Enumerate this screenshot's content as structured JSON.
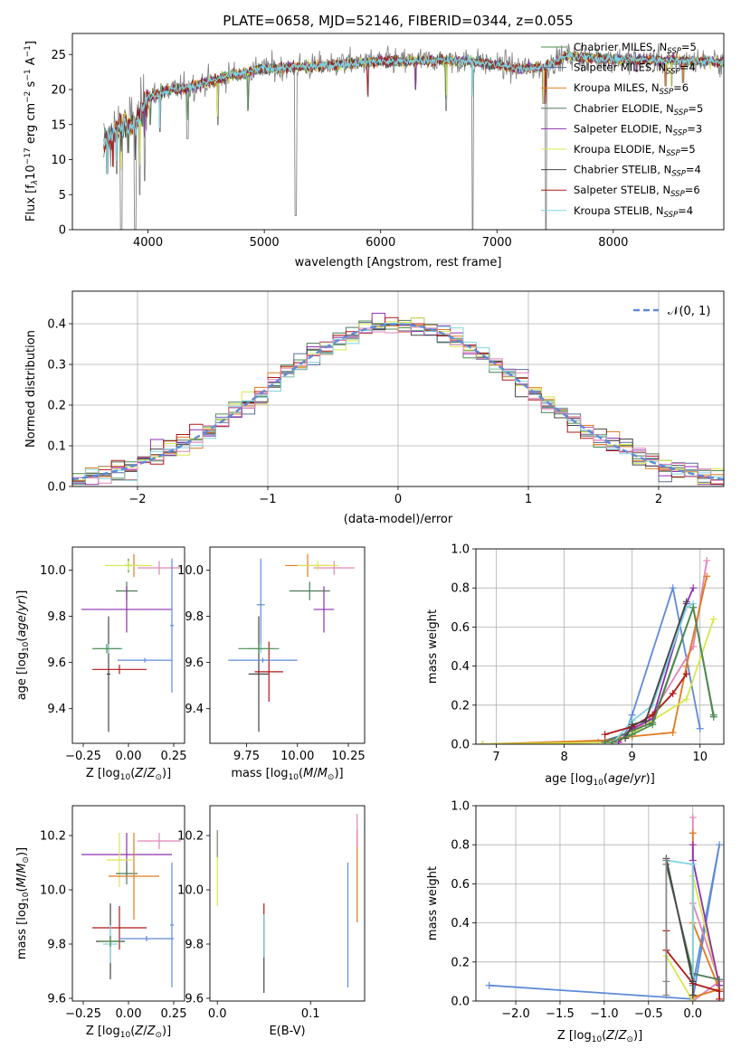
{
  "colors": {
    "Chabrier MILES": "#4c8c4c",
    "Salpeter MILES": "#5a6d9a",
    "Kroupa MILES": "#e07a1f",
    "Chabrier ELODIE": "#4e7a5a",
    "Salpeter ELODIE": "#8e30b0",
    "Kroupa ELODIE": "#d7e84a",
    "Chabrier STELIB": "#444444",
    "Salpeter STELIB": "#b01818",
    "Kroupa STELIB": "#7fd3e0",
    "extra_pink": "#e283b8",
    "extra_blue": "#5f8ad8",
    "extra_grey": "#888888"
  },
  "chart_data": [
    {
      "id": "spectrum",
      "type": "line",
      "title": "PLATE=0658, MJD=52146, FIBERID=0344, z=0.055",
      "xlabel": "wavelength [Angstrom, rest frame]",
      "ylabel": "Flux [f$_\\lambda$10$^{-17}$ erg cm$^{-2}$ s$^{-1}$ A$^{-1}$]",
      "ylabel_parts": [
        "Flux [f",
        "λ",
        "10",
        "−17",
        " erg cm",
        "−2",
        " s",
        "−1",
        " A",
        "−1",
        "]"
      ],
      "xlim": [
        3350,
        8950
      ],
      "ylim": [
        0,
        28
      ],
      "xticks": [
        4000,
        5000,
        6000,
        7000,
        8000
      ],
      "yticks": [
        0,
        5,
        10,
        15,
        20,
        25
      ],
      "envelope": [
        [
          3600,
          12
        ],
        [
          3700,
          13.5
        ],
        [
          3800,
          15.5
        ],
        [
          3900,
          15
        ],
        [
          4000,
          19
        ],
        [
          4100,
          19.5
        ],
        [
          4200,
          20
        ],
        [
          4400,
          20.5
        ],
        [
          4700,
          22
        ],
        [
          5000,
          23
        ],
        [
          5300,
          23.2
        ],
        [
          5600,
          23.5
        ],
        [
          5900,
          24
        ],
        [
          6200,
          24
        ],
        [
          6500,
          24.2
        ],
        [
          6800,
          24
        ],
        [
          7000,
          23.5
        ],
        [
          7200,
          23
        ],
        [
          7400,
          23.2
        ],
        [
          7600,
          24.8
        ],
        [
          7800,
          24.5
        ],
        [
          8100,
          24.3
        ],
        [
          8400,
          24.2
        ],
        [
          8900,
          24.0
        ]
      ],
      "dips": [
        [
          3650,
          8
        ],
        [
          3700,
          9
        ],
        [
          3730,
          8
        ],
        [
          3770,
          0
        ],
        [
          3830,
          11
        ],
        [
          3890,
          0
        ],
        [
          3930,
          5
        ],
        [
          3970,
          7
        ],
        [
          4020,
          15
        ],
        [
          4101,
          14
        ],
        [
          4340,
          13
        ],
        [
          4600,
          15
        ],
        [
          4861,
          17
        ],
        [
          5270,
          2
        ],
        [
          5890,
          19
        ],
        [
          6300,
          20
        ],
        [
          6563,
          17
        ],
        [
          6790,
          0
        ],
        [
          7400,
          18
        ],
        [
          7420,
          0
        ],
        [
          8200,
          22.5
        ],
        [
          8450,
          20.5
        ],
        [
          8500,
          20.5
        ],
        [
          8600,
          21
        ]
      ],
      "legend": [
        {
          "label": "Chabrier MILES, N",
          "sub": "SSP",
          "tail": "=5"
        },
        {
          "label": "Salpeter MILES, N",
          "sub": "SSP",
          "tail": "=4"
        },
        {
          "label": "Kroupa MILES, N",
          "sub": "SSP",
          "tail": "=6"
        },
        {
          "label": "Chabrier ELODIE, N",
          "sub": "SSP",
          "tail": "=5"
        },
        {
          "label": "Salpeter ELODIE, N",
          "sub": "SSP",
          "tail": "=3"
        },
        {
          "label": "Kroupa ELODIE, N",
          "sub": "SSP",
          "tail": "=5"
        },
        {
          "label": "Chabrier STELIB, N",
          "sub": "SSP",
          "tail": "=4"
        },
        {
          "label": "Salpeter STELIB, N",
          "sub": "SSP",
          "tail": "=6"
        },
        {
          "label": "Kroupa STELIB, N",
          "sub": "SSP",
          "tail": "=4"
        }
      ]
    },
    {
      "id": "residuals",
      "type": "line",
      "xlabel": "(data-model)/error",
      "ylabel": "Normed distribution",
      "xlim": [
        -2.5,
        2.5
      ],
      "ylim": [
        0,
        0.48
      ],
      "xticks": [
        -2,
        -1,
        0,
        1,
        2
      ],
      "xticklabels": [
        "−2",
        "−1",
        "0",
        "1",
        "2"
      ],
      "yticks": [
        0.0,
        0.1,
        0.2,
        0.3,
        0.4
      ],
      "grid": true,
      "bin_width": 0.1,
      "legend": "𝒩(0, 1)",
      "legend_position": "top-right"
    },
    {
      "id": "age_vs_Z",
      "type": "scatter",
      "xlabel": "Z [log10(Z/Z⊙)]",
      "ylabel": "age  [log10(age/yr)]",
      "xlim": [
        -0.31,
        0.31
      ],
      "ylim": [
        9.25,
        10.1
      ],
      "xticks": [
        -0.25,
        0.0,
        0.25
      ],
      "xticklabels": [
        "−0.25",
        "0.00",
        "0.25"
      ],
      "yticks": [
        9.4,
        9.6,
        9.8,
        10.0
      ],
      "points": [
        {
          "c": "Kroupa MILES",
          "x": 0.03,
          "dx": 0.05,
          "y": 10.02,
          "dy": 0.05
        },
        {
          "c": "Chabrier MILES",
          "x": 0.0,
          "dx": 0.02,
          "y": 10.02,
          "dy": 0.03
        },
        {
          "c": "extra_pink",
          "x": 0.17,
          "dx": 0.12,
          "y": 10.01,
          "dy": 0.03
        },
        {
          "c": "Kroupa ELODIE",
          "x": 0.0,
          "dx": 0.13,
          "y": 10.02,
          "dy": 0.02
        },
        {
          "c": "Chabrier ELODIE",
          "x": -0.01,
          "dx": 0.06,
          "y": 9.91,
          "dy": 0.04
        },
        {
          "c": "Salpeter ELODIE",
          "x": -0.01,
          "dx": 0.25,
          "y": 9.83,
          "dy": 0.1
        },
        {
          "c": "extra_blue",
          "x": 0.24,
          "dx": 0.01,
          "y": 9.76,
          "dy": 0.29
        },
        {
          "c": "Chabrier STELIB",
          "x": -0.11,
          "dx": 0.01,
          "y": 9.55,
          "dy": 0.25
        },
        {
          "c": "Kroupa STELIB",
          "x": -0.11,
          "dx": 0.08,
          "y": 9.66,
          "dy": 0.02
        },
        {
          "c": "Chabrier MILES",
          "x": -0.12,
          "dx": 0.08,
          "y": 9.66,
          "dy": 0.02
        },
        {
          "c": "Salpeter STELIB",
          "x": -0.05,
          "dx": 0.15,
          "y": 9.57,
          "dy": 0.02
        },
        {
          "c": "extra_blue",
          "x": 0.09,
          "dx": 0.15,
          "y": 9.61,
          "dy": 0.01
        }
      ]
    },
    {
      "id": "age_vs_mass",
      "type": "scatter",
      "xlabel": "mass [log10(M/M⊙)]",
      "ylim": [
        9.25,
        10.1
      ],
      "xlim": [
        9.57,
        10.33
      ],
      "xticks": [
        9.75,
        10.0,
        10.25
      ],
      "xticklabels": [
        "9.75",
        "10.00",
        "10.25"
      ],
      "yticks": [
        9.4,
        9.6,
        9.8,
        10.0
      ],
      "points": [
        {
          "c": "Kroupa MILES",
          "x": 10.05,
          "dx": 0.11,
          "y": 10.02,
          "dy": 0.05
        },
        {
          "c": "extra_pink",
          "x": 10.18,
          "dx": 0.1,
          "y": 10.01,
          "dy": 0.03
        },
        {
          "c": "Kroupa ELODIE",
          "x": 10.1,
          "dx": 0.1,
          "y": 10.02,
          "dy": 0.02
        },
        {
          "c": "Chabrier ELODIE",
          "x": 10.06,
          "dx": 0.1,
          "y": 9.91,
          "dy": 0.04
        },
        {
          "c": "Salpeter ELODIE",
          "x": 10.13,
          "dx": 0.05,
          "y": 9.83,
          "dy": 0.1
        },
        {
          "c": "extra_blue",
          "x": 9.82,
          "dx": 0.02,
          "y": 9.85,
          "dy": 0.2
        },
        {
          "c": "Chabrier STELIB",
          "x": 9.81,
          "dx": 0.05,
          "y": 9.55,
          "dy": 0.25
        },
        {
          "c": "Kroupa STELIB",
          "x": 9.82,
          "dx": 0.06,
          "y": 9.66,
          "dy": 0.02
        },
        {
          "c": "Salpeter STELIB",
          "x": 9.86,
          "dx": 0.07,
          "y": 9.56,
          "dy": 0.13
        },
        {
          "c": "extra_blue",
          "x": 9.83,
          "dx": 0.17,
          "y": 9.61,
          "dy": 0.01
        },
        {
          "c": "Chabrier MILES",
          "x": 9.81,
          "dx": 0.1,
          "y": 9.66,
          "dy": 0.02
        }
      ]
    },
    {
      "id": "weight_vs_age",
      "type": "line",
      "xlabel": "age  [log10(age/yr)]",
      "ylabel": "mass weight",
      "xlim": [
        6.7,
        10.35
      ],
      "ylim": [
        0,
        1.0
      ],
      "xticks": [
        7,
        8,
        9,
        10
      ],
      "yticks": [
        0.0,
        0.2,
        0.4,
        0.6,
        0.8,
        1.0
      ],
      "grid": true,
      "series": [
        {
          "c": "extra_blue",
          "x": [
            6.8,
            8.5,
            8.9,
            9.0,
            9.6,
            10.0
          ],
          "y": [
            0.0,
            0.01,
            0.05,
            0.15,
            0.8,
            0.08
          ]
        },
        {
          "c": "extra_pink",
          "x": [
            6.8,
            8.7,
            9.0,
            9.2,
            9.9,
            10.1
          ],
          "y": [
            0.0,
            0.01,
            0.08,
            0.1,
            0.5,
            0.94
          ]
        },
        {
          "c": "Kroupa MILES",
          "x": [
            6.8,
            8.6,
            9.0,
            9.6,
            9.8,
            10.1
          ],
          "y": [
            0.0,
            0.02,
            0.04,
            0.06,
            0.4,
            0.86
          ]
        },
        {
          "c": "Kroupa ELODIE",
          "x": [
            6.8,
            8.8,
            9.1,
            9.8,
            10.2
          ],
          "y": [
            0.0,
            0.01,
            0.08,
            0.23,
            0.64
          ]
        },
        {
          "c": "Salpeter ELODIE",
          "x": [
            8.8,
            9.0,
            9.3,
            9.8,
            9.9
          ],
          "y": [
            0.01,
            0.08,
            0.13,
            0.72,
            0.8
          ]
        },
        {
          "c": "Chabrier ELODIE",
          "x": [
            8.6,
            9.0,
            9.3,
            9.9,
            10.2
          ],
          "y": [
            0.01,
            0.07,
            0.11,
            0.7,
            0.14
          ]
        },
        {
          "c": "Kroupa STELIB",
          "x": [
            8.7,
            9.0,
            9.3,
            9.8,
            9.9
          ],
          "y": [
            0.0,
            0.12,
            0.2,
            0.7,
            0.72
          ]
        },
        {
          "c": "Salpeter STELIB",
          "x": [
            8.6,
            9.0,
            9.3,
            9.6,
            9.8
          ],
          "y": [
            0.05,
            0.09,
            0.15,
            0.26,
            0.36
          ]
        },
        {
          "c": "Chabrier STELIB",
          "x": [
            8.9,
            9.0,
            9.2,
            9.8
          ],
          "y": [
            0.03,
            0.1,
            0.12,
            0.73
          ]
        },
        {
          "c": "Chabrier MILES",
          "x": [
            8.7,
            9.0,
            9.3,
            9.9,
            10.2
          ],
          "y": [
            0.01,
            0.05,
            0.1,
            0.7,
            0.15
          ]
        }
      ]
    },
    {
      "id": "mass_vs_Z",
      "type": "scatter",
      "xlabel": "Z [log10(Z/Z⊙)]",
      "ylabel": "mass [log10(M/M⊙)]",
      "xlim": [
        -0.31,
        0.31
      ],
      "ylim": [
        9.59,
        10.31
      ],
      "xticks": [
        -0.25,
        0.0,
        0.25
      ],
      "xticklabels": [
        "−0.25",
        "0.00",
        "0.25"
      ],
      "yticks": [
        9.6,
        9.8,
        10.0,
        10.2
      ],
      "points": [
        {
          "c": "extra_pink",
          "x": 0.17,
          "dx": 0.12,
          "y": 10.18,
          "dy": 0.03
        },
        {
          "c": "Salpeter ELODIE",
          "x": -0.01,
          "dx": 0.25,
          "y": 10.13,
          "dy": 0.08
        },
        {
          "c": "Kroupa ELODIE",
          "x": -0.05,
          "dx": 0.07,
          "y": 10.11,
          "dy": 0.1
        },
        {
          "c": "Chabrier ELODIE",
          "x": -0.01,
          "dx": 0.06,
          "y": 10.06,
          "dy": 0.04
        },
        {
          "c": "Kroupa MILES",
          "x": 0.03,
          "dx": 0.14,
          "y": 10.05,
          "dy": 0.16
        },
        {
          "c": "Salpeter STELIB",
          "x": -0.05,
          "dx": 0.15,
          "y": 9.86,
          "dy": 0.08
        },
        {
          "c": "Chabrier STELIB",
          "x": -0.1,
          "dx": 0.08,
          "y": 9.81,
          "dy": 0.14
        },
        {
          "c": "Kroupa STELIB",
          "x": -0.1,
          "dx": 0.04,
          "y": 9.8,
          "dy": 0.07
        },
        {
          "c": "extra_blue",
          "x": 0.1,
          "dx": 0.15,
          "y": 9.82,
          "dy": 0.01
        },
        {
          "c": "extra_blue",
          "x": 0.24,
          "dx": 0.01,
          "y": 9.87,
          "dy": 0.23
        },
        {
          "c": "Chabrier MILES",
          "x": -0.1,
          "dx": 0.06,
          "y": 9.81,
          "dy": 0.02
        }
      ]
    },
    {
      "id": "mass_vs_ebv",
      "type": "scatter",
      "xlabel": "E(B-V)",
      "xlim": [
        -0.008,
        0.158
      ],
      "ylim": [
        9.59,
        10.31
      ],
      "xticks": [
        0.0,
        0.1
      ],
      "xticklabels": [
        "0.0",
        "0.1"
      ],
      "yticks": [
        9.6,
        9.8,
        10.0,
        10.2
      ],
      "points": [
        {
          "c": "Kroupa ELODIE",
          "x": 0.0,
          "dx": 0.0,
          "y": 10.08,
          "dy": 0.14
        },
        {
          "c": "extra_grey",
          "x": 0.0,
          "dx": 0.0,
          "y": 10.17,
          "dy": 0.05
        },
        {
          "c": "Salpeter STELIB",
          "x": 0.05,
          "dx": 0.0,
          "y": 9.85,
          "dy": 0.1
        },
        {
          "c": "Chabrier STELIB",
          "x": 0.05,
          "dx": 0.0,
          "y": 9.76,
          "dy": 0.14
        },
        {
          "c": "Kroupa STELIB",
          "x": 0.05,
          "dx": 0.0,
          "y": 9.83,
          "dy": 0.08
        },
        {
          "c": "extra_blue",
          "x": 0.14,
          "dx": 0.0,
          "y": 9.87,
          "dy": 0.23
        },
        {
          "c": "Kroupa MILES",
          "x": 0.15,
          "dx": 0.0,
          "y": 10.05,
          "dy": 0.17
        },
        {
          "c": "extra_pink",
          "x": 0.15,
          "dx": 0.0,
          "y": 10.22,
          "dy": 0.06
        }
      ]
    },
    {
      "id": "weight_vs_Z",
      "type": "line",
      "xlabel": "Z [log10(Z/Z⊙)]",
      "ylabel": "mass weight",
      "xlim": [
        -2.45,
        0.35
      ],
      "ylim": [
        0,
        1.0
      ],
      "xticks": [
        -2.0,
        -1.5,
        -1.0,
        -0.5,
        0.0
      ],
      "xticklabels": [
        "−2.0",
        "−1.5",
        "−1.0",
        "−0.5",
        "0.0"
      ],
      "yticks": [
        0.0,
        0.2,
        0.4,
        0.6,
        0.8,
        1.0
      ],
      "grid": true,
      "series": [
        {
          "c": "extra_blue",
          "x": [
            -2.3,
            0.0,
            0.3,
            0.0
          ],
          "y": [
            0.08,
            0.01,
            0.8,
            0.08
          ]
        },
        {
          "c": "extra_pink",
          "x": [
            0.0,
            0.0,
            0.3,
            0.0
          ],
          "y": [
            0.94,
            0.0,
            0.1,
            0.5
          ]
        },
        {
          "c": "Kroupa MILES",
          "x": [
            0.0,
            0.0,
            0.3,
            0.0
          ],
          "y": [
            0.86,
            0.4,
            0.06,
            0.02
          ]
        },
        {
          "c": "Kroupa ELODIE",
          "x": [
            -0.3,
            0.0,
            0.0,
            0.3
          ],
          "y": [
            0.23,
            0.0,
            0.64,
            0.08
          ]
        },
        {
          "c": "Salpeter ELODIE",
          "x": [
            0.0,
            0.0,
            0.3
          ],
          "y": [
            0.8,
            0.72,
            0.08
          ]
        },
        {
          "c": "Chabrier ELODIE",
          "x": [
            -0.3,
            0.0,
            0.3
          ],
          "y": [
            0.7,
            0.14,
            0.11
          ]
        },
        {
          "c": "Kroupa STELIB",
          "x": [
            -0.3,
            0.0,
            0.0
          ],
          "y": [
            0.72,
            0.7,
            0.12
          ]
        },
        {
          "c": "Salpeter STELIB",
          "x": [
            -0.3,
            -0.3,
            0.0,
            0.3,
            0.3
          ],
          "y": [
            0.36,
            0.26,
            0.09,
            0.05,
            0.01
          ]
        },
        {
          "c": "Chabrier STELIB",
          "x": [
            -0.3,
            0.0,
            0.0
          ],
          "y": [
            0.73,
            0.1,
            0.03
          ]
        },
        {
          "c": "extra_grey",
          "x": [
            -0.3,
            -0.3,
            -0.3
          ],
          "y": [
            0.72,
            0.1,
            0.03
          ]
        }
      ]
    }
  ]
}
